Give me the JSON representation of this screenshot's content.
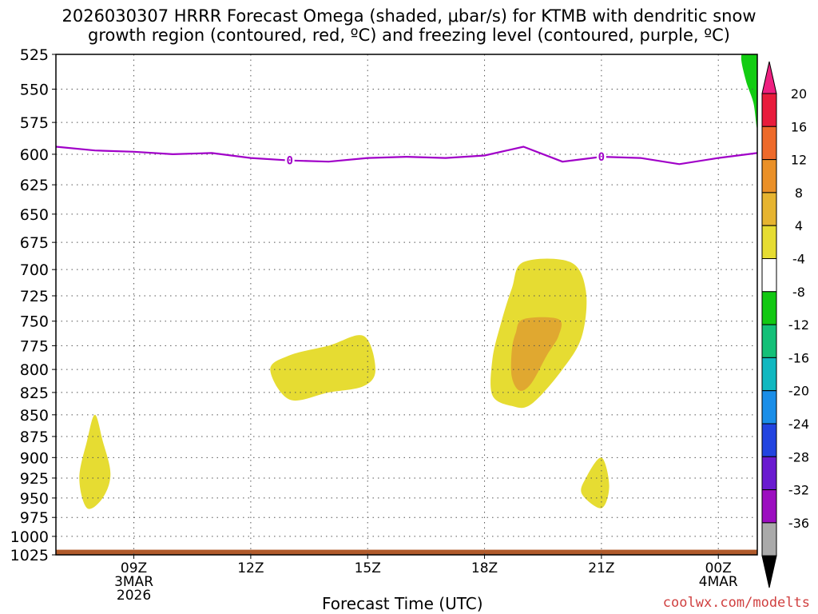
{
  "chart_data": {
    "type": "contour",
    "title_line1": "2026030307 HRRR Forecast Omega (shaded, μbar/s) for KTMB with dendritic snow",
    "title_line2": "growth region (contoured, red, ºC) and freezing level (contoured, purple, ºC)",
    "xlabel": "Forecast Time (UTC)",
    "xlim_hours": [
      7,
      25
    ],
    "ylim_hPa": [
      525,
      1025
    ],
    "yticks": [
      525,
      550,
      575,
      600,
      625,
      650,
      675,
      700,
      725,
      750,
      775,
      800,
      825,
      850,
      875,
      900,
      925,
      950,
      975,
      1000,
      1025
    ],
    "xticks": [
      {
        "hour": 9,
        "lines": [
          "09Z",
          "3MAR",
          "2026"
        ]
      },
      {
        "hour": 12,
        "lines": [
          "12Z"
        ]
      },
      {
        "hour": 15,
        "lines": [
          "15Z"
        ]
      },
      {
        "hour": 18,
        "lines": [
          "18Z"
        ]
      },
      {
        "hour": 21,
        "lines": [
          "21Z"
        ]
      },
      {
        "hour": 24,
        "lines": [
          "00Z",
          "4MAR"
        ]
      }
    ],
    "freezing_level": {
      "label": "0",
      "color": "#a000c8",
      "points": [
        [
          7,
          594
        ],
        [
          8,
          597
        ],
        [
          9,
          598
        ],
        [
          10,
          600
        ],
        [
          11,
          599
        ],
        [
          12,
          603
        ],
        [
          13,
          605
        ],
        [
          14,
          606
        ],
        [
          15,
          603
        ],
        [
          16,
          602
        ],
        [
          17,
          603
        ],
        [
          18,
          601
        ],
        [
          19,
          594
        ],
        [
          20,
          606
        ],
        [
          21,
          602
        ],
        [
          22,
          603
        ],
        [
          23,
          608
        ],
        [
          24,
          603
        ],
        [
          25,
          599
        ]
      ],
      "label_hours": [
        13,
        21
      ]
    },
    "omega_regions": [
      {
        "level": "4 to 8",
        "color": "#e6dc32",
        "points": [
          [
            8,
            850
          ],
          [
            7.8,
            880
          ],
          [
            7.6,
            925
          ],
          [
            7.8,
            963
          ],
          [
            8.2,
            950
          ],
          [
            8.4,
            920
          ],
          [
            8.2,
            880
          ]
        ]
      },
      {
        "level": "4 to 8",
        "color": "#e6dc32",
        "points": [
          [
            12.5,
            800
          ],
          [
            13,
            785
          ],
          [
            14,
            775
          ],
          [
            14.9,
            765
          ],
          [
            15.2,
            800
          ],
          [
            14.9,
            818
          ],
          [
            14,
            825
          ],
          [
            13,
            833
          ]
        ]
      },
      {
        "level": "4 to 8",
        "color": "#e6dc32",
        "points": [
          [
            19,
            693
          ],
          [
            20.2,
            693
          ],
          [
            20.6,
            720
          ],
          [
            20.5,
            765
          ],
          [
            20,
            800
          ],
          [
            19.2,
            838
          ],
          [
            18.7,
            840
          ],
          [
            18.2,
            828
          ],
          [
            18.2,
            790
          ],
          [
            18.4,
            755
          ],
          [
            18.7,
            718
          ]
        ]
      },
      {
        "level": "4 to 8",
        "color": "#e6dc32",
        "points": [
          [
            21,
            900
          ],
          [
            21.2,
            935
          ],
          [
            21,
            963
          ],
          [
            20.5,
            945
          ],
          [
            20.6,
            925
          ]
        ]
      },
      {
        "level": "8 to 12",
        "color": "#e0a830",
        "points": [
          [
            19,
            748
          ],
          [
            19.9,
            748
          ],
          [
            19.9,
            765
          ],
          [
            19.6,
            785
          ],
          [
            19.2,
            815
          ],
          [
            18.9,
            823
          ],
          [
            18.7,
            808
          ],
          [
            18.7,
            780
          ],
          [
            18.8,
            762
          ]
        ]
      },
      {
        "level": "-4 to -8",
        "color": "#12cc12",
        "points": [
          [
            24.6,
            525
          ],
          [
            25,
            525
          ],
          [
            25,
            578
          ],
          [
            24.9,
            560
          ],
          [
            24.7,
            543
          ]
        ]
      }
    ],
    "surface": {
      "color": "#b05a2a",
      "top_hPa": 1018
    },
    "colorbar": {
      "labels": [
        "20",
        "16",
        "12",
        "8",
        "4",
        "-4",
        "-8",
        "-12",
        "-16",
        "-20",
        "-24",
        "-28",
        "-32",
        "-36"
      ],
      "bins": [
        {
          "color": "#e81c3c"
        },
        {
          "color": "#ee6a2a"
        },
        {
          "color": "#ea9028"
        },
        {
          "color": "#e6b430"
        },
        {
          "color": "#e6dc32"
        },
        {
          "color": "#ffffff"
        },
        {
          "color": "#12c812"
        },
        {
          "color": "#14c078"
        },
        {
          "color": "#10b8c0"
        },
        {
          "color": "#1a8ee8"
        },
        {
          "color": "#2244e0"
        },
        {
          "color": "#6a1ad0"
        },
        {
          "color": "#9c0ec0"
        },
        {
          "color": "#aaaaaa"
        }
      ],
      "top_color": "#ee2080",
      "bottom_color": "#000000"
    }
  },
  "credit": "coolwx.com/modelts"
}
